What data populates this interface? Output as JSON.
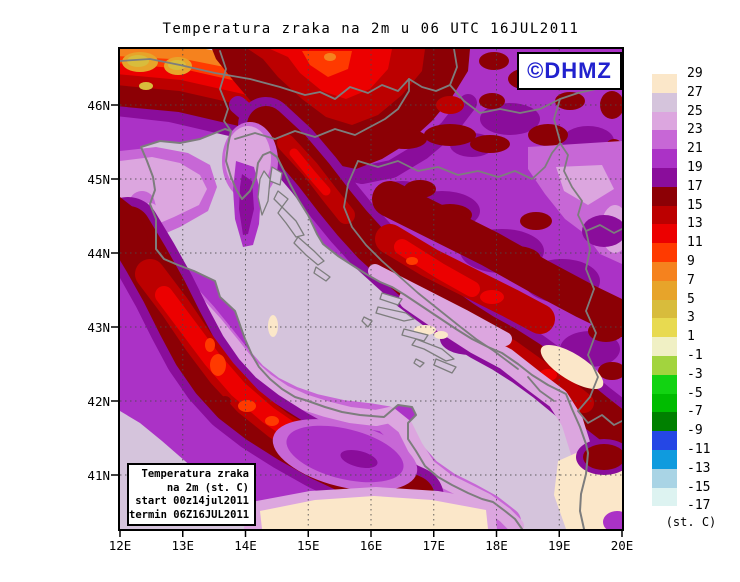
{
  "title": "Temperatura zraka na 2m u 06 UTC 16JUL2011",
  "watermark": {
    "label": "©DHMZ"
  },
  "info_box": {
    "lines": [
      "Temperatura zraka",
      "na 2m (st. C)",
      "start 00z14jul2011",
      "termin 06Z16JUL2011"
    ]
  },
  "axes": {
    "lat_ticks": [
      "46N",
      "45N",
      "44N",
      "43N",
      "42N",
      "41N"
    ],
    "lon_ticks": [
      "12E",
      "13E",
      "14E",
      "15E",
      "16E",
      "17E",
      "18E",
      "19E",
      "20E"
    ]
  },
  "legend": {
    "unit_label": "(st. C)",
    "tick_labels": [
      "29",
      "27",
      "25",
      "23",
      "21",
      "19",
      "17",
      "15",
      "13",
      "11",
      "9",
      "7",
      "5",
      "3",
      "1",
      "-1",
      "-3",
      "-5",
      "-7",
      "-9",
      "-11",
      "-13",
      "-15",
      "-17"
    ],
    "swatch_colors": [
      "#FBE7C9",
      "#D5C4DC",
      "#DCA6DF",
      "#C767D6",
      "#AB32C6",
      "#8A0D9B",
      "#8C0005",
      "#BC0000",
      "#EC0000",
      "#FF3A00",
      "#F5821E",
      "#E7A42A",
      "#D8BC3C",
      "#E8DA50",
      "#F0F0C4",
      "#A2D43E",
      "#12D312",
      "#00BC00",
      "#008000",
      "#2547E5",
      "#0F9BDE",
      "#A9D4E5",
      "#DDF3F1"
    ]
  },
  "colors": {
    "dhmz_blue": "#2121CE",
    "coastline_gray": "#7d7d7d",
    "sea_fill": "#D5C4DC",
    "land_purple": "#AB32C6"
  }
}
